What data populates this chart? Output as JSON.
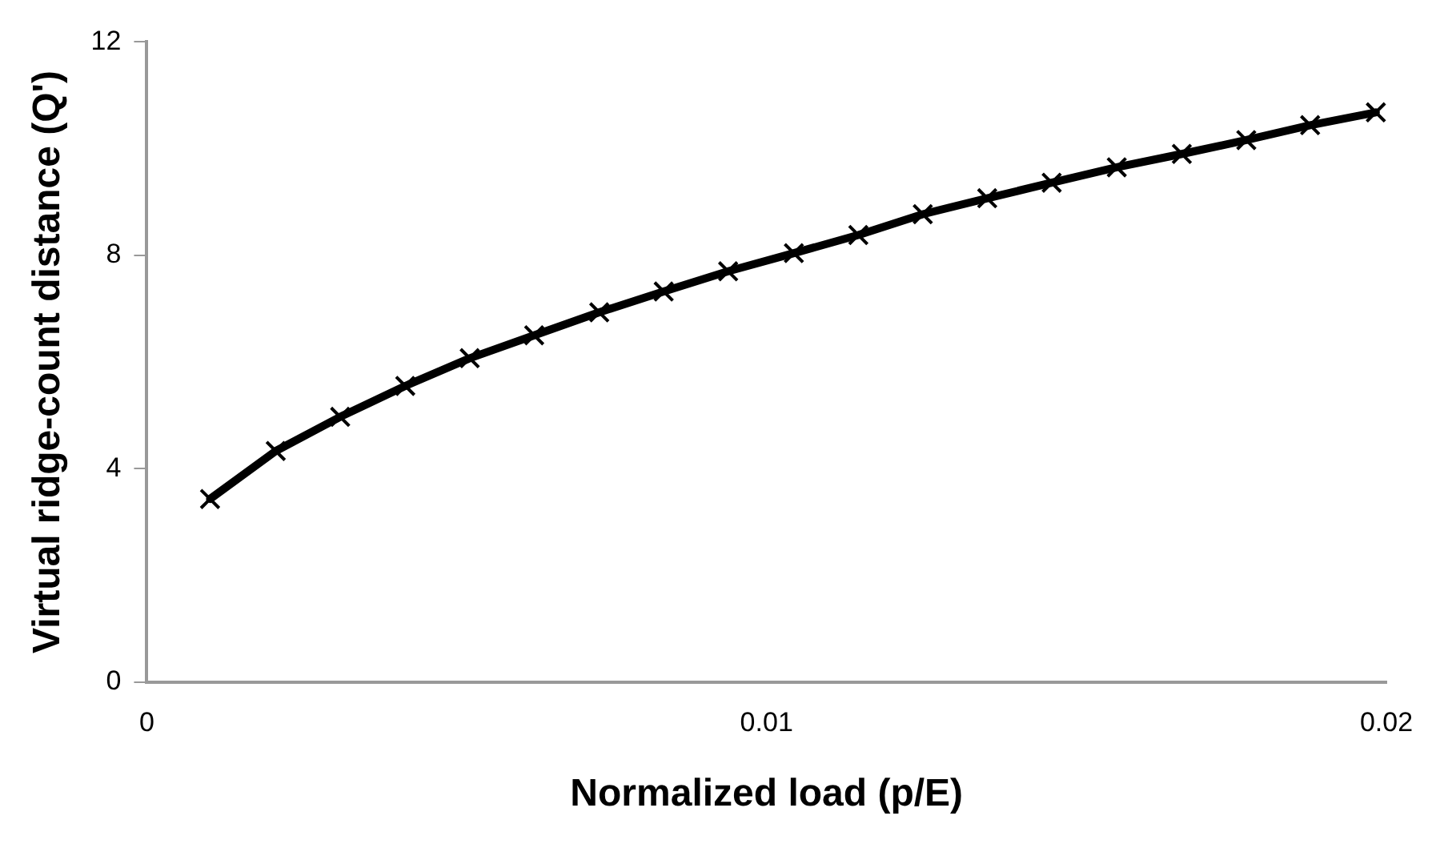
{
  "chart_data": {
    "type": "line",
    "xlabel": "Normalized load (p/E)",
    "ylabel": "Virtual ridge-count distance (Q')",
    "x": [
      0.00102,
      0.00208,
      0.00312,
      0.00417,
      0.00521,
      0.00625,
      0.0073,
      0.00834,
      0.00938,
      0.01044,
      0.01148,
      0.01252,
      0.01356,
      0.0146,
      0.01565,
      0.0167,
      0.01774,
      0.01877,
      0.01983
    ],
    "series": [
      {
        "color": "#000000",
        "values": [
          3.43,
          4.33,
          4.97,
          5.55,
          6.07,
          6.5,
          6.93,
          7.32,
          7.7,
          8.04,
          8.38,
          8.77,
          9.07,
          9.36,
          9.65,
          9.9,
          10.16,
          10.44,
          10.68
        ]
      }
    ],
    "xlim": [
      0,
      0.02
    ],
    "xticks": [
      0,
      0.01,
      0.02
    ],
    "ylim": [
      0,
      12
    ],
    "yticks": [
      0,
      4,
      8,
      12
    ],
    "grid": false,
    "legend": false,
    "marker": "cross",
    "line_style": "solid"
  }
}
